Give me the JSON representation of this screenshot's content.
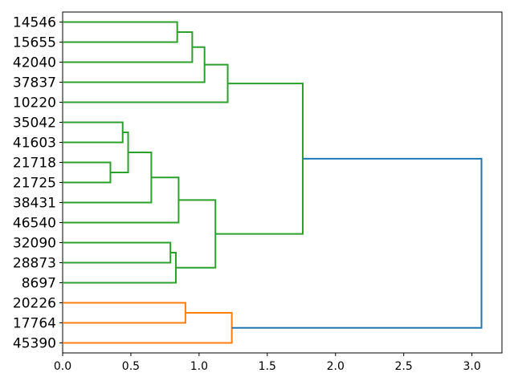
{
  "figure": {
    "title": "",
    "background": "#ffffff"
  },
  "chart_data": {
    "type": "dendrogram",
    "orientation": "right",
    "title": "",
    "xlabel": "",
    "ylabel": "",
    "grid": false,
    "legend": false,
    "leaves": [
      "14546",
      "15655",
      "42040",
      "37837",
      "10220",
      "35042",
      "41603",
      "21718",
      "21725",
      "38431",
      "46540",
      "32090",
      "28873",
      "8697",
      "20226",
      "17764",
      "45390"
    ],
    "merges": [
      {
        "id": "m0",
        "children": [
          "14546",
          "15655"
        ],
        "distance": 0.84,
        "color": "green"
      },
      {
        "id": "m1",
        "children": [
          "m0",
          "42040"
        ],
        "distance": 0.95,
        "color": "green"
      },
      {
        "id": "m2",
        "children": [
          "m1",
          "37837"
        ],
        "distance": 1.04,
        "color": "green"
      },
      {
        "id": "m3",
        "children": [
          "m2",
          "10220"
        ],
        "distance": 1.21,
        "color": "green"
      },
      {
        "id": "m4",
        "children": [
          "35042",
          "41603"
        ],
        "distance": 0.44,
        "color": "green"
      },
      {
        "id": "m5",
        "children": [
          "21718",
          "21725"
        ],
        "distance": 0.35,
        "color": "green"
      },
      {
        "id": "m6",
        "children": [
          "m4",
          "m5"
        ],
        "distance": 0.48,
        "color": "green"
      },
      {
        "id": "m7",
        "children": [
          "m6",
          "38431"
        ],
        "distance": 0.65,
        "color": "green"
      },
      {
        "id": "m8",
        "children": [
          "m7",
          "46540"
        ],
        "distance": 0.85,
        "color": "green"
      },
      {
        "id": "m9",
        "children": [
          "32090",
          "28873"
        ],
        "distance": 0.79,
        "color": "green"
      },
      {
        "id": "m10",
        "children": [
          "m9",
          "8697"
        ],
        "distance": 0.83,
        "color": "green"
      },
      {
        "id": "m11",
        "children": [
          "m8",
          "m10"
        ],
        "distance": 1.12,
        "color": "green"
      },
      {
        "id": "m12",
        "children": [
          "m3",
          "m11"
        ],
        "distance": 1.76,
        "color": "green"
      },
      {
        "id": "m13",
        "children": [
          "20226",
          "17764"
        ],
        "distance": 0.9,
        "color": "orange"
      },
      {
        "id": "m14",
        "children": [
          "m13",
          "45390"
        ],
        "distance": 1.24,
        "color": "orange"
      },
      {
        "id": "m15",
        "children": [
          "m12",
          "m14"
        ],
        "distance": 3.07,
        "color": "blue"
      }
    ],
    "x_axis": {
      "tick_labels": [
        "0.0",
        "0.5",
        "1.0",
        "1.5",
        "2.0",
        "2.5",
        "3.0"
      ],
      "tick_values": [
        0,
        0.5,
        1,
        1.5,
        2,
        2.5,
        3
      ],
      "range": [
        0,
        3.22
      ]
    },
    "colors": {
      "green": "#2ca02c",
      "orange": "#ff7f0e",
      "blue": "#1f77b4",
      "axis": "#000000",
      "text": "#000000",
      "background": "#ffffff"
    }
  }
}
